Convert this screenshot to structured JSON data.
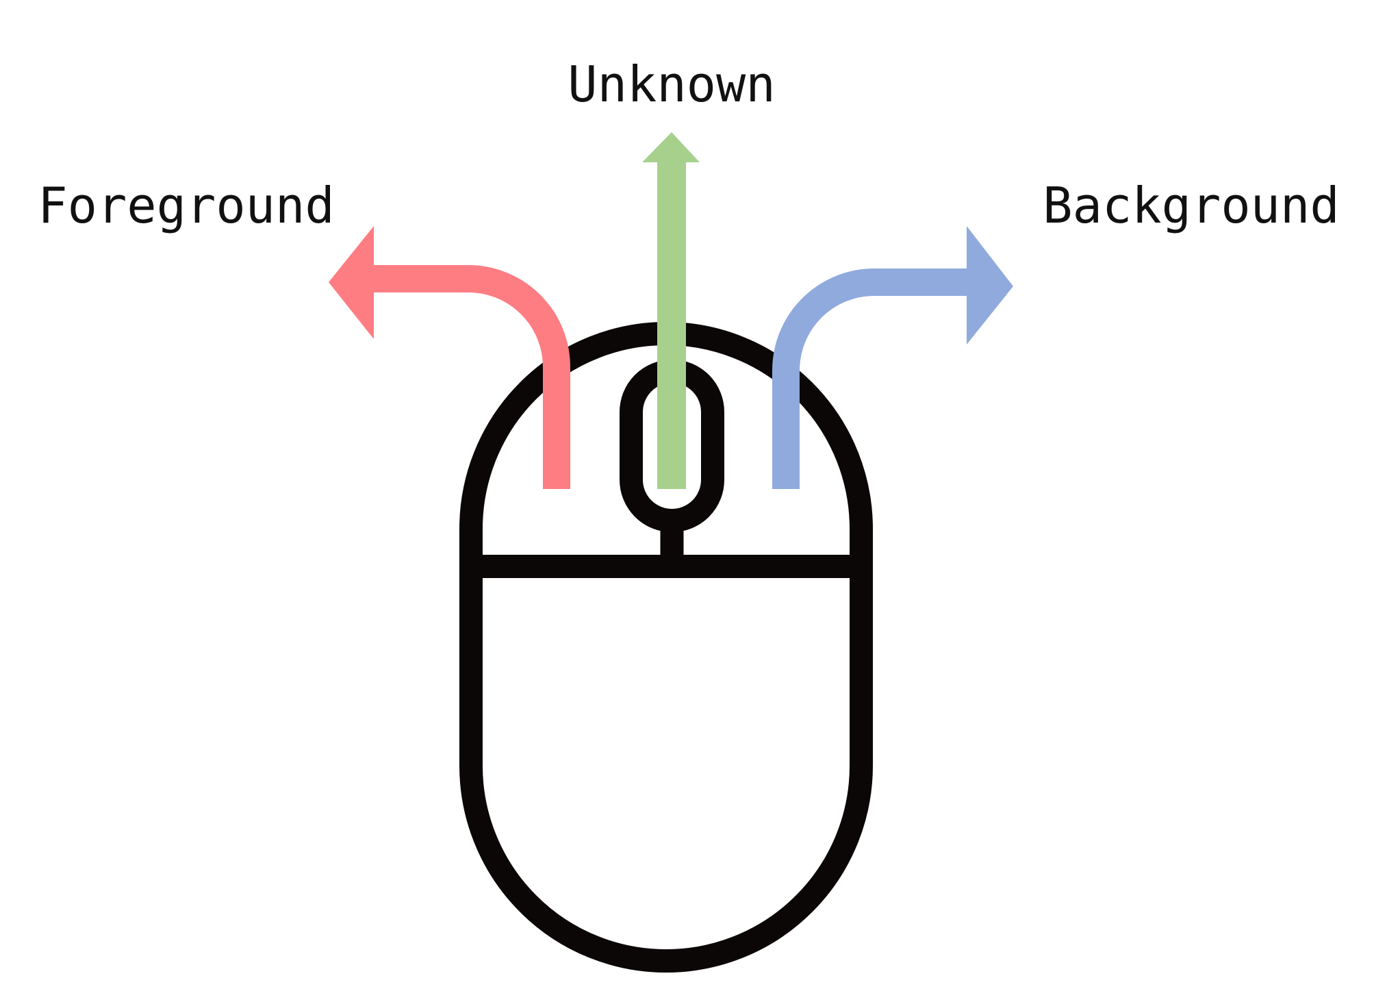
{
  "labels": {
    "left": "Foreground",
    "middle": "Unknown",
    "right": "Background"
  },
  "colors": {
    "left_arrow": "#fd7d83",
    "middle_arrow": "#a6d08c",
    "right_arrow": "#90aadd",
    "mouse": "#0a0706",
    "text": "#111111",
    "background": "#ffffff"
  },
  "icons": {
    "mouse": "computer-mouse-icon",
    "left_arrow": "curved-arrow-left-icon",
    "middle_arrow": "arrow-up-icon",
    "right_arrow": "curved-arrow-right-icon"
  }
}
